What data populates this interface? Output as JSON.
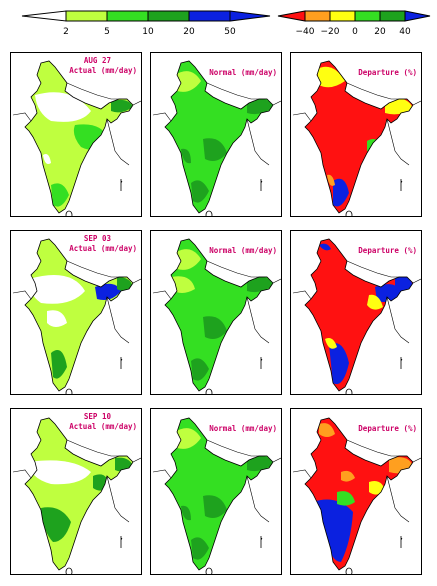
{
  "legend_actual": {
    "ticks": [
      "2",
      "5",
      "10",
      "20",
      "50"
    ],
    "colors": [
      "#ffffff",
      "#bfff3f",
      "#34df22",
      "#1ea21e",
      "#0b21e0"
    ]
  },
  "legend_departure": {
    "ticks": [
      "−40",
      "−20",
      "0",
      "20",
      "40"
    ],
    "colors": [
      "#ff1111",
      "#ff9f1f",
      "#ffff11",
      "#34df22",
      "#1ea21e",
      "#0b21e0"
    ]
  },
  "rows": [
    {
      "date": "AUG 27",
      "actual_label": "Actual (mm/day)",
      "normal_label": "Normal (mm/day)",
      "departure_label": "Departure (%)"
    },
    {
      "date": "SEP 03",
      "actual_label": "Actual (mm/day)",
      "normal_label": "Normal (mm/day)",
      "departure_label": "Departure (%)"
    },
    {
      "date": "SEP 10",
      "actual_label": "Actual (mm/day)",
      "normal_label": "Normal (mm/day)",
      "departure_label": "Departure (%)"
    }
  ],
  "colors": {
    "white": "#ffffff",
    "lightgreen": "#bfff3f",
    "green": "#34df22",
    "darkgreen": "#1ea21e",
    "blue": "#0b21e0",
    "red": "#ff1111",
    "orange": "#ff9f1f",
    "yellow": "#ffff11",
    "label": "#cc0066"
  }
}
